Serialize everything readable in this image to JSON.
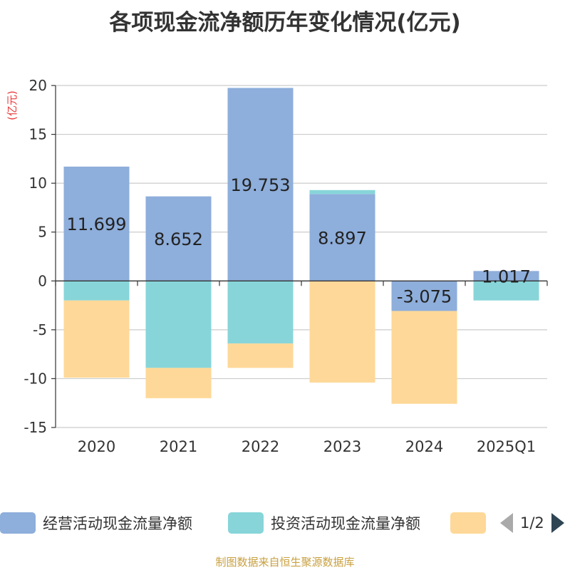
{
  "title": "各项现金流净额历年变化情况(亿元)",
  "source_note": "制图数据来自恒生聚源数据库",
  "legend": {
    "items": [
      {
        "label": "经营活动现金流量净额",
        "color": "#8eaedb"
      },
      {
        "label": "投资活动现金流量净额",
        "color": "#87d5d9"
      },
      {
        "label": "",
        "color": "#fed898"
      }
    ],
    "page": "1/2"
  },
  "chart_data": {
    "type": "bar",
    "stacked": true,
    "categories": [
      "2020",
      "2021",
      "2022",
      "2023",
      "2024",
      "2025Q1"
    ],
    "ylabel": "(亿元)",
    "ylim": [
      -15,
      20
    ],
    "yticks": [
      20,
      15,
      10,
      5,
      0,
      -5,
      -10,
      -15
    ],
    "grid": true,
    "legend_position": "bottom",
    "series": [
      {
        "name": "经营活动现金流量净额",
        "color": "#8eaedb",
        "values": [
          11.699,
          8.652,
          19.753,
          8.897,
          -3.075,
          1.017
        ],
        "show_labels": true
      },
      {
        "name": "投资活动现金流量净额",
        "color": "#87d5d9",
        "values": [
          -2.0,
          -8.9,
          -6.4,
          0.4,
          null,
          -2.0
        ],
        "show_labels": false
      },
      {
        "name": "",
        "color": "#fed898",
        "values": [
          -7.9,
          -3.1,
          -2.5,
          -10.4,
          -9.5,
          null
        ],
        "show_labels": false
      }
    ]
  }
}
